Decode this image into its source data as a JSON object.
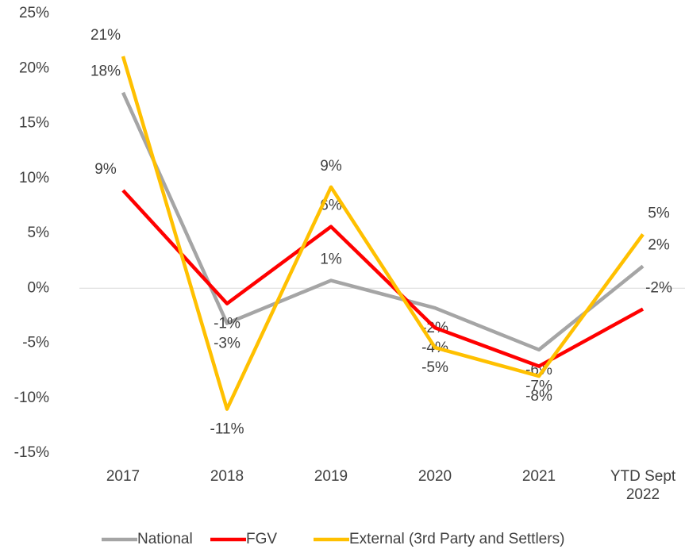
{
  "chart_data": {
    "type": "line",
    "categories": [
      "2017",
      "2018",
      "2019",
      "2020",
      "2021",
      "YTD Sept 2022"
    ],
    "series": [
      {
        "name": "National",
        "color": "#a5a5a5",
        "values": [
          17.8,
          -3.2,
          0.7,
          -1.8,
          -5.6,
          2.0
        ],
        "value_labels": [
          "18%",
          "-3%",
          "1%",
          "-2%",
          "-6%",
          "2%"
        ]
      },
      {
        "name": "FGV",
        "color": "#ff0000",
        "values": [
          8.9,
          -1.4,
          5.6,
          -3.6,
          -7.1,
          -1.9
        ],
        "value_labels": [
          "9%",
          "-1%",
          "6%",
          "-4%",
          "-7%",
          "-2%"
        ]
      },
      {
        "name": "External (3rd Party and Settlers)",
        "color": "#ffc000",
        "values": [
          21.1,
          -11.0,
          9.2,
          -5.4,
          -8.0,
          4.9
        ],
        "value_labels": [
          "21%",
          "-11%",
          "9%",
          "-5%",
          "-8%",
          "5%"
        ]
      }
    ],
    "ylim": [
      -15,
      25
    ],
    "yticks": [
      {
        "value": -15,
        "label": "-15%"
      },
      {
        "value": -10,
        "label": "-10%"
      },
      {
        "value": -5,
        "label": "-5%"
      },
      {
        "value": 0,
        "label": "0%"
      },
      {
        "value": 5,
        "label": "5%"
      },
      {
        "value": 10,
        "label": "10%"
      },
      {
        "value": 15,
        "label": "15%"
      },
      {
        "value": 20,
        "label": "20%"
      },
      {
        "value": 25,
        "label": "25%"
      }
    ],
    "legend": "bottom"
  }
}
